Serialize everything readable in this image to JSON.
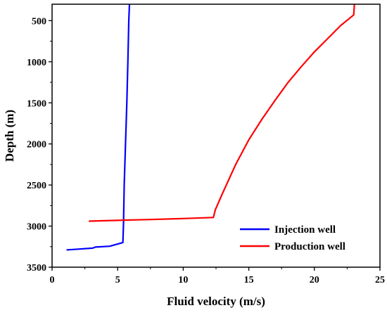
{
  "chart_data": {
    "type": "line",
    "title": "",
    "xlabel": "Fluid velocity (m/s)",
    "ylabel": "Depth (m)",
    "xlim": [
      0,
      25
    ],
    "ylim": [
      3500,
      300
    ],
    "y_axis_inverted": true,
    "grid": false,
    "legend_position": "bottom-right",
    "xticks": [
      0,
      5,
      10,
      15,
      20,
      25
    ],
    "yticks": [
      500,
      1000,
      1500,
      2000,
      2500,
      3000,
      3500
    ],
    "series": [
      {
        "name": "Injection well",
        "color": "#0000ff",
        "points": [
          [
            1.1,
            3290
          ],
          [
            2.0,
            3280
          ],
          [
            3.1,
            3268
          ],
          [
            3.3,
            3255
          ],
          [
            4.4,
            3245
          ],
          [
            5.4,
            3200
          ],
          [
            5.45,
            2950
          ],
          [
            5.5,
            2500
          ],
          [
            5.6,
            2000
          ],
          [
            5.7,
            1500
          ],
          [
            5.78,
            1000
          ],
          [
            5.85,
            500
          ],
          [
            5.9,
            300
          ]
        ]
      },
      {
        "name": "Production well",
        "color": "#ff0000",
        "points": [
          [
            2.8,
            2940
          ],
          [
            5.0,
            2930
          ],
          [
            7.5,
            2920
          ],
          [
            10.0,
            2908
          ],
          [
            12.3,
            2895
          ],
          [
            12.45,
            2800
          ],
          [
            13.0,
            2600
          ],
          [
            14.0,
            2250
          ],
          [
            15.0,
            1950
          ],
          [
            16.0,
            1700
          ],
          [
            17.0,
            1470
          ],
          [
            18.0,
            1250
          ],
          [
            19.0,
            1060
          ],
          [
            20.0,
            880
          ],
          [
            21.0,
            720
          ],
          [
            22.0,
            560
          ],
          [
            23.0,
            430
          ],
          [
            23.05,
            300
          ]
        ]
      }
    ]
  }
}
